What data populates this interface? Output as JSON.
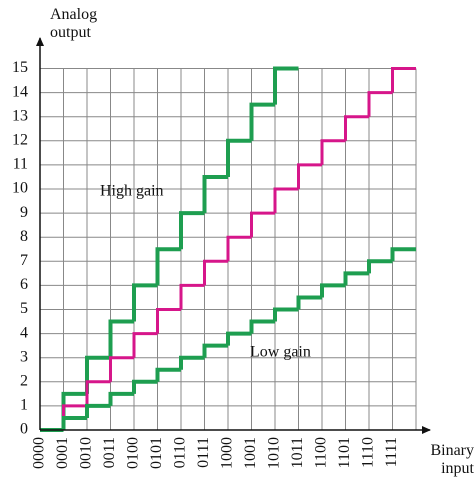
{
  "chart_data": {
    "type": "step",
    "y_label": "Analog output",
    "x_label": "Binary input",
    "categories": [
      "0000",
      "0001",
      "0010",
      "0011",
      "0100",
      "0101",
      "0110",
      "0111",
      "1000",
      "1001",
      "1010",
      "1011",
      "1100",
      "1101",
      "1110",
      "1111"
    ],
    "ylim": [
      0,
      15
    ],
    "yticks": [
      0,
      1,
      2,
      3,
      4,
      5,
      6,
      7,
      8,
      9,
      10,
      11,
      12,
      13,
      14,
      15
    ],
    "grid": true,
    "series": [
      {
        "name": "High gain",
        "color": "#1e9e50",
        "values": [
          0,
          1.5,
          3,
          4.5,
          6,
          7.5,
          9,
          10.5,
          12,
          13.5,
          15,
          null,
          null,
          null,
          null,
          null
        ]
      },
      {
        "color": "#d6168a",
        "values": [
          0,
          1,
          2,
          3,
          4,
          5,
          6,
          7,
          8,
          9,
          10,
          11,
          12,
          13,
          14,
          15
        ]
      },
      {
        "name": "Low gain",
        "color": "#1e9e50",
        "values": [
          0,
          0.5,
          1,
          1.5,
          2,
          2.5,
          3,
          3.5,
          4,
          4.5,
          5,
          5.5,
          6,
          6.5,
          7,
          7.5
        ]
      }
    ]
  }
}
